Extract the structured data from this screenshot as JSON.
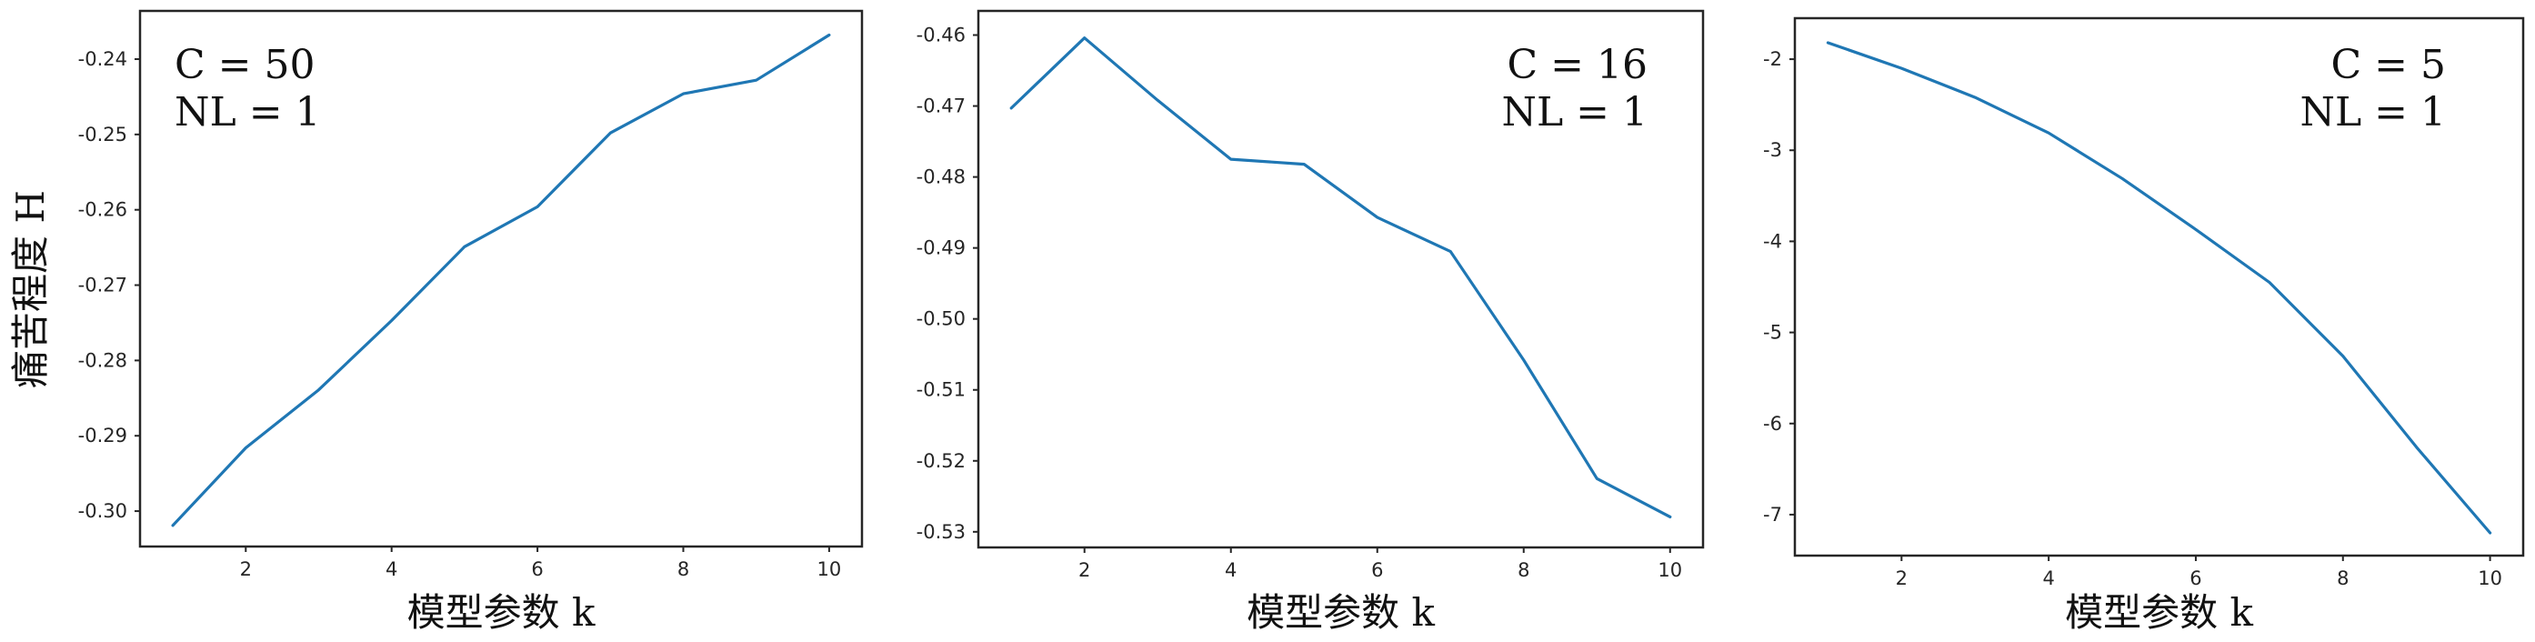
{
  "ylabel_shared": "痛苦程度 H",
  "chart_data": [
    {
      "type": "line",
      "title": "",
      "xlabel": "模型参数 k",
      "ylabel": "痛苦程度 H",
      "annotation": [
        "C = 50",
        "NL = 1"
      ],
      "annotation_position": "top-left",
      "x": [
        1,
        2,
        3,
        4,
        5,
        6,
        7,
        8,
        9,
        10
      ],
      "series": [
        {
          "values": [
            -0.3019,
            -0.2916,
            -0.2839,
            -0.2747,
            -0.2649,
            -0.2596,
            -0.2498,
            -0.2446,
            -0.2428,
            -0.2368
          ]
        }
      ],
      "xticks": [
        2,
        4,
        6,
        8,
        10
      ],
      "xtick_labels": [
        "2",
        "4",
        "6",
        "8",
        "10"
      ],
      "yticks": [
        -0.3,
        -0.29,
        -0.28,
        -0.27,
        -0.26,
        -0.25,
        -0.24
      ],
      "ytick_labels": [
        "-0.30",
        "-0.29",
        "-0.28",
        "-0.27",
        "-0.26",
        "-0.25",
        "-0.24"
      ],
      "xlim": [
        0.55,
        10.45
      ],
      "ylim": [
        -0.3047,
        -0.2336
      ],
      "grid": false,
      "color": "#1f77b4"
    },
    {
      "type": "line",
      "title": "",
      "xlabel": "模型参数 k",
      "ylabel": "",
      "annotation": [
        "C = 16",
        "NL = 1"
      ],
      "annotation_position": "top-right",
      "x": [
        1,
        2,
        3,
        4,
        5,
        6,
        7,
        8,
        9,
        10
      ],
      "series": [
        {
          "values": [
            -0.4703,
            -0.4604,
            -0.4692,
            -0.4775,
            -0.4782,
            -0.4857,
            -0.4905,
            -0.5058,
            -0.5225,
            -0.5279
          ]
        }
      ],
      "xticks": [
        2,
        4,
        6,
        8,
        10
      ],
      "xtick_labels": [
        "2",
        "4",
        "6",
        "8",
        "10"
      ],
      "yticks": [
        -0.53,
        -0.52,
        -0.51,
        -0.5,
        -0.49,
        -0.48,
        -0.47,
        -0.46
      ],
      "ytick_labels": [
        "-0.53",
        "-0.52",
        "-0.51",
        "-0.50",
        "-0.49",
        "-0.48",
        "-0.47",
        "-0.46"
      ],
      "xlim": [
        0.55,
        10.45
      ],
      "ylim": [
        -0.5322,
        -0.4566
      ],
      "grid": false,
      "color": "#1f77b4"
    },
    {
      "type": "line",
      "title": "",
      "xlabel": "模型参数 k",
      "ylabel": "",
      "annotation": [
        "C = 5",
        "NL = 1"
      ],
      "annotation_position": "top-right",
      "x": [
        1,
        2,
        3,
        4,
        5,
        6,
        7,
        8,
        9,
        10
      ],
      "series": [
        {
          "values": [
            -1.82,
            -2.1,
            -2.42,
            -2.81,
            -3.31,
            -3.87,
            -4.45,
            -5.26,
            -6.26,
            -7.2
          ]
        }
      ],
      "xticks": [
        2,
        4,
        6,
        8,
        10
      ],
      "xtick_labels": [
        "2",
        "4",
        "6",
        "8",
        "10"
      ],
      "yticks": [
        -7,
        -6,
        -5,
        -4,
        -3,
        -2
      ],
      "ytick_labels": [
        "-7",
        "-6",
        "-5",
        "-4",
        "-3",
        "-2"
      ],
      "xlim": [
        0.55,
        10.45
      ],
      "ylim": [
        -7.45,
        -1.55
      ],
      "grid": false,
      "color": "#1f77b4"
    }
  ]
}
